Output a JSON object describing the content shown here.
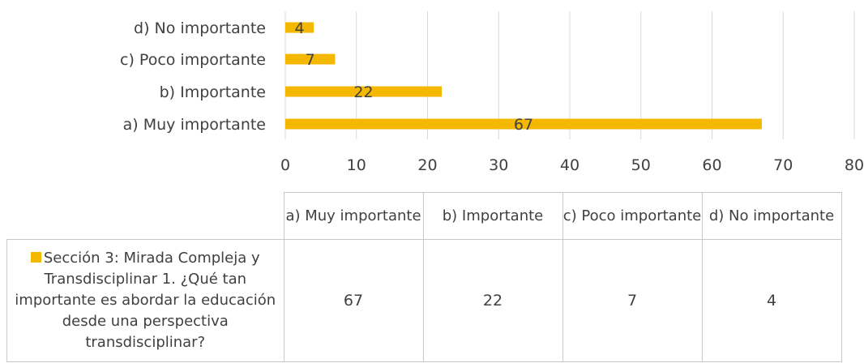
{
  "chart_data": {
    "type": "bar",
    "orientation": "horizontal",
    "categories": [
      "a) Muy importante",
      "b) Importante",
      "c) Poco importante",
      "d) No importante"
    ],
    "series": [
      {
        "name": "Sección 3: Mirada Compleja y Transdisciplinar 1. ¿Qué tan importante es abordar la educación desde una perspectiva transdisciplinar?",
        "values": [
          67,
          22,
          7,
          4
        ],
        "color": "#f5b800"
      }
    ],
    "xlim": [
      0,
      80
    ],
    "x_ticks": [
      "0",
      "10",
      "20",
      "30",
      "40",
      "50",
      "60",
      "70",
      "80"
    ],
    "grid": true,
    "data_table": true
  },
  "table": {
    "headers": [
      "a) Muy importante",
      "b) Importante",
      "c) Poco importante",
      "d) No importante"
    ],
    "series_label": "Sección 3: Mirada Compleja y Transdisciplinar 1. ¿Qué tan importante es abordar la educación desde una perspectiva transdisciplinar?",
    "values": [
      "67",
      "22",
      "7",
      "4"
    ]
  }
}
